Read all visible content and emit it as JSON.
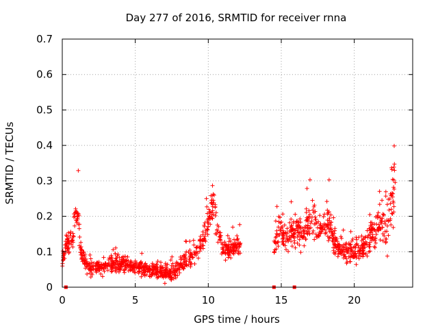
{
  "chart_data": {
    "type": "scatter",
    "title": "Day 277 of 2016, SRMTID for receiver rnna",
    "xlabel": "GPS time / hours",
    "ylabel": "SRMTID / TECUs",
    "xlim": [
      0,
      24
    ],
    "ylim": [
      0,
      0.7
    ],
    "x_ticks": [
      0,
      5,
      10,
      15,
      20
    ],
    "x_tick_labels": [
      "0",
      "5",
      "10",
      "15",
      "20"
    ],
    "y_ticks": [
      0,
      0.1,
      0.2,
      0.3,
      0.4,
      0.5,
      0.6,
      0.7
    ],
    "y_tick_labels": [
      "0",
      "0.1",
      "0.2",
      "0.3",
      "0.4",
      "0.5",
      "0.6",
      "0.7"
    ],
    "grid": true,
    "marker": "plus",
    "series_color": "#ff0000",
    "zero_markers_x": [
      0.25,
      14.5,
      15.9
    ],
    "profile_x": [
      0.0,
      0.3,
      0.6,
      0.8,
      0.95,
      1.05,
      1.3,
      1.6,
      2.0,
      3.0,
      3.6,
      4.5,
      5.5,
      6.5,
      7.2,
      7.6,
      8.2,
      9.0,
      9.6,
      10.0,
      10.3,
      10.6,
      11.0,
      11.6,
      12.2
    ],
    "profile_center": [
      0.08,
      0.12,
      0.13,
      0.17,
      0.22,
      0.2,
      0.1,
      0.06,
      0.05,
      0.06,
      0.07,
      0.06,
      0.055,
      0.045,
      0.035,
      0.04,
      0.07,
      0.09,
      0.12,
      0.18,
      0.24,
      0.18,
      0.1,
      0.11,
      0.12
    ],
    "profile_spread": [
      0.04,
      0.05,
      0.06,
      0.08,
      0.1,
      0.1,
      0.05,
      0.03,
      0.03,
      0.03,
      0.04,
      0.035,
      0.035,
      0.03,
      0.03,
      0.03,
      0.04,
      0.05,
      0.05,
      0.06,
      0.08,
      0.07,
      0.04,
      0.04,
      0.04
    ],
    "profile2_x": [
      14.5,
      14.9,
      15.3,
      16.0,
      16.5,
      16.9,
      17.5,
      18.0,
      18.3,
      18.7,
      19.5,
      20.2,
      20.8,
      21.3,
      21.7,
      22.0,
      22.3,
      22.6,
      22.8
    ],
    "profile2_center": [
      0.1,
      0.17,
      0.14,
      0.16,
      0.14,
      0.19,
      0.16,
      0.17,
      0.18,
      0.12,
      0.1,
      0.1,
      0.12,
      0.15,
      0.19,
      0.16,
      0.17,
      0.26,
      0.3
    ],
    "profile2_spread": [
      0.05,
      0.07,
      0.06,
      0.07,
      0.06,
      0.08,
      0.06,
      0.06,
      0.07,
      0.05,
      0.05,
      0.05,
      0.06,
      0.07,
      0.09,
      0.08,
      0.09,
      0.17,
      0.2
    ],
    "point_count": 1400
  }
}
